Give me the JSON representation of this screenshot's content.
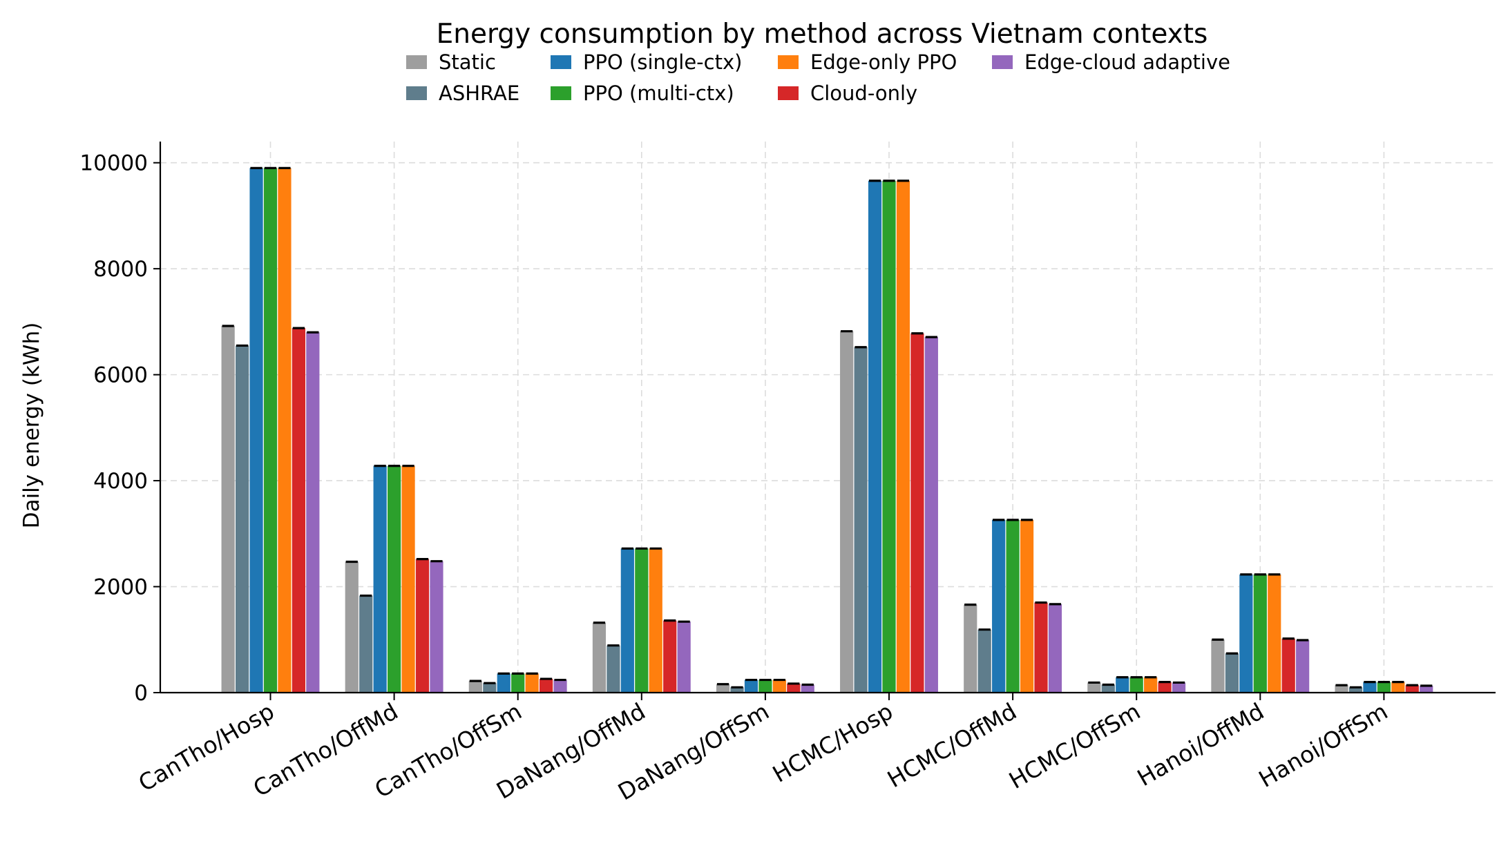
{
  "chart_data": {
    "type": "bar",
    "title": "Energy consumption by method across Vietnam contexts",
    "xlabel": "",
    "ylabel": "Daily energy (kWh)",
    "ylim": [
      0,
      10400
    ],
    "yticks": [
      0,
      2000,
      4000,
      6000,
      8000,
      10000
    ],
    "grid": true,
    "legend_position": "top-center",
    "categories": [
      "CanTho/Hosp",
      "CanTho/OffMd",
      "CanTho/OffSm",
      "DaNang/OffMd",
      "DaNang/OffSm",
      "HCMC/Hosp",
      "HCMC/OffMd",
      "HCMC/OffSm",
      "Hanoi/OffMd",
      "Hanoi/OffSm"
    ],
    "series": [
      {
        "name": "Static",
        "color": "#9e9e9e",
        "values": [
          6920,
          2470,
          220,
          1320,
          160,
          6820,
          1660,
          190,
          1000,
          140
        ]
      },
      {
        "name": "ASHRAE",
        "color": "#5f7d8c",
        "values": [
          6550,
          1830,
          180,
          890,
          100,
          6520,
          1190,
          150,
          740,
          100
        ]
      },
      {
        "name": "PPO (single-ctx)",
        "color": "#1f77b4",
        "values": [
          9900,
          4280,
          360,
          2720,
          240,
          9660,
          3260,
          290,
          2230,
          200
        ]
      },
      {
        "name": "PPO (multi-ctx)",
        "color": "#2ca02c",
        "values": [
          9900,
          4280,
          360,
          2720,
          240,
          9660,
          3260,
          290,
          2230,
          200
        ]
      },
      {
        "name": "Edge-only PPO",
        "color": "#ff7f0e",
        "values": [
          9900,
          4280,
          360,
          2720,
          240,
          9660,
          3260,
          290,
          2230,
          200
        ]
      },
      {
        "name": "Cloud-only",
        "color": "#d62728",
        "values": [
          6880,
          2520,
          260,
          1360,
          170,
          6780,
          1700,
          200,
          1020,
          140
        ]
      },
      {
        "name": "Edge-cloud adaptive",
        "color": "#9467bd",
        "values": [
          6800,
          2480,
          240,
          1340,
          150,
          6710,
          1670,
          190,
          990,
          130
        ]
      }
    ]
  }
}
